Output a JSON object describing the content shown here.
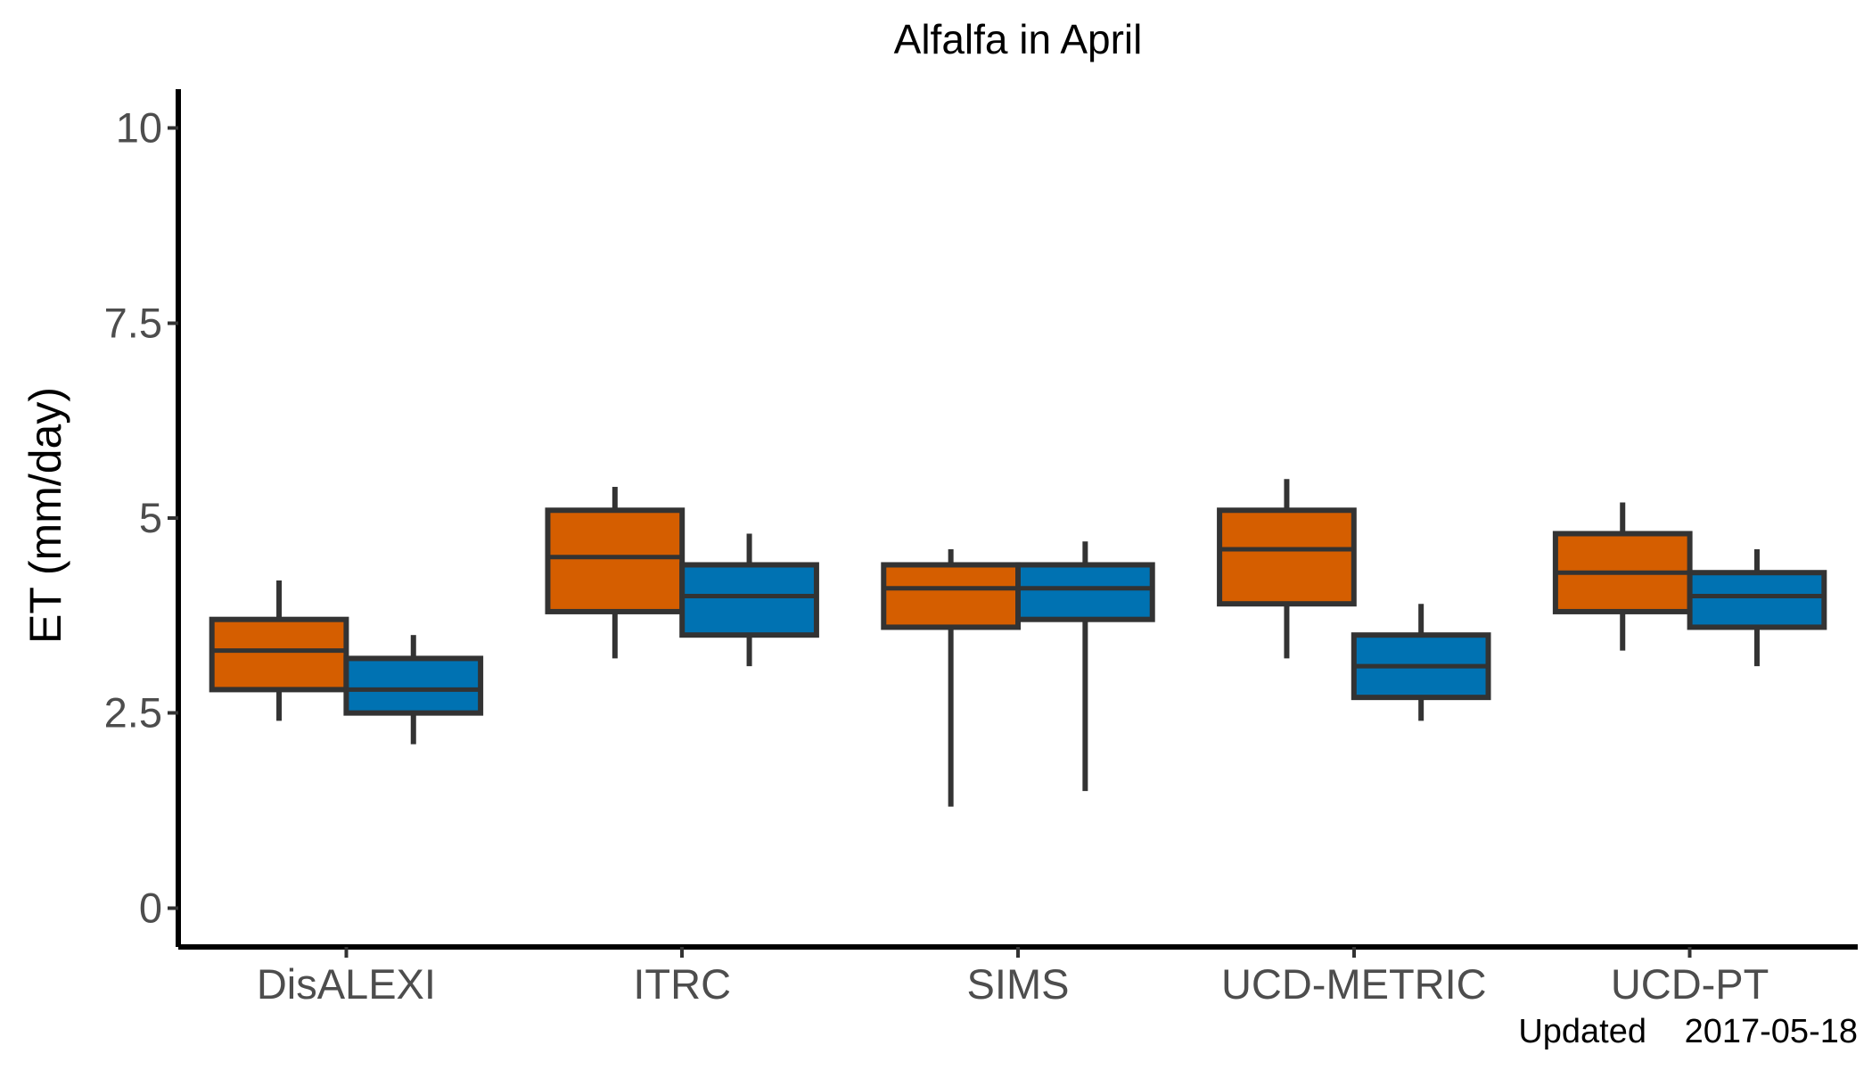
{
  "chart_data": {
    "type": "boxplot",
    "title": "Alfalfa in April",
    "xlabel": "",
    "ylabel": "ET (mm/day)",
    "ylim": [
      -0.5,
      10.5
    ],
    "y_ticks": [
      0,
      2.5,
      5,
      7.5,
      10
    ],
    "y_tick_labels": [
      "0",
      "2.5",
      "5",
      "7.5",
      "10"
    ],
    "categories": [
      "DisALEXI",
      "ITRC",
      "SIMS",
      "UCD-METRIC",
      "UCD-PT"
    ],
    "grid": false,
    "legend": "none",
    "series": [
      {
        "color": "#D55E00",
        "boxes": [
          {
            "min": 2.4,
            "q1": 2.8,
            "median": 3.3,
            "q3": 3.7,
            "max": 4.2
          },
          {
            "min": 3.2,
            "q1": 3.8,
            "median": 4.5,
            "q3": 5.1,
            "max": 5.4
          },
          {
            "min": 1.3,
            "q1": 3.6,
            "median": 4.1,
            "q3": 4.4,
            "max": 4.6
          },
          {
            "min": 3.2,
            "q1": 3.9,
            "median": 4.6,
            "q3": 5.1,
            "max": 5.5
          },
          {
            "min": 3.3,
            "q1": 3.8,
            "median": 4.3,
            "q3": 4.8,
            "max": 5.2
          }
        ]
      },
      {
        "color": "#0072B2",
        "boxes": [
          {
            "min": 2.1,
            "q1": 2.5,
            "median": 2.8,
            "q3": 3.2,
            "max": 3.5
          },
          {
            "min": 3.1,
            "q1": 3.5,
            "median": 4.0,
            "q3": 4.4,
            "max": 4.8
          },
          {
            "min": 1.5,
            "q1": 3.7,
            "median": 4.1,
            "q3": 4.4,
            "max": 4.7
          },
          {
            "min": 2.4,
            "q1": 2.7,
            "median": 3.1,
            "q3": 3.5,
            "max": 3.9
          },
          {
            "min": 3.1,
            "q1": 3.6,
            "median": 4.0,
            "q3": 4.3,
            "max": 4.6
          }
        ]
      }
    ],
    "footer_label": "Updated",
    "footer_date": "2017-05-18"
  }
}
